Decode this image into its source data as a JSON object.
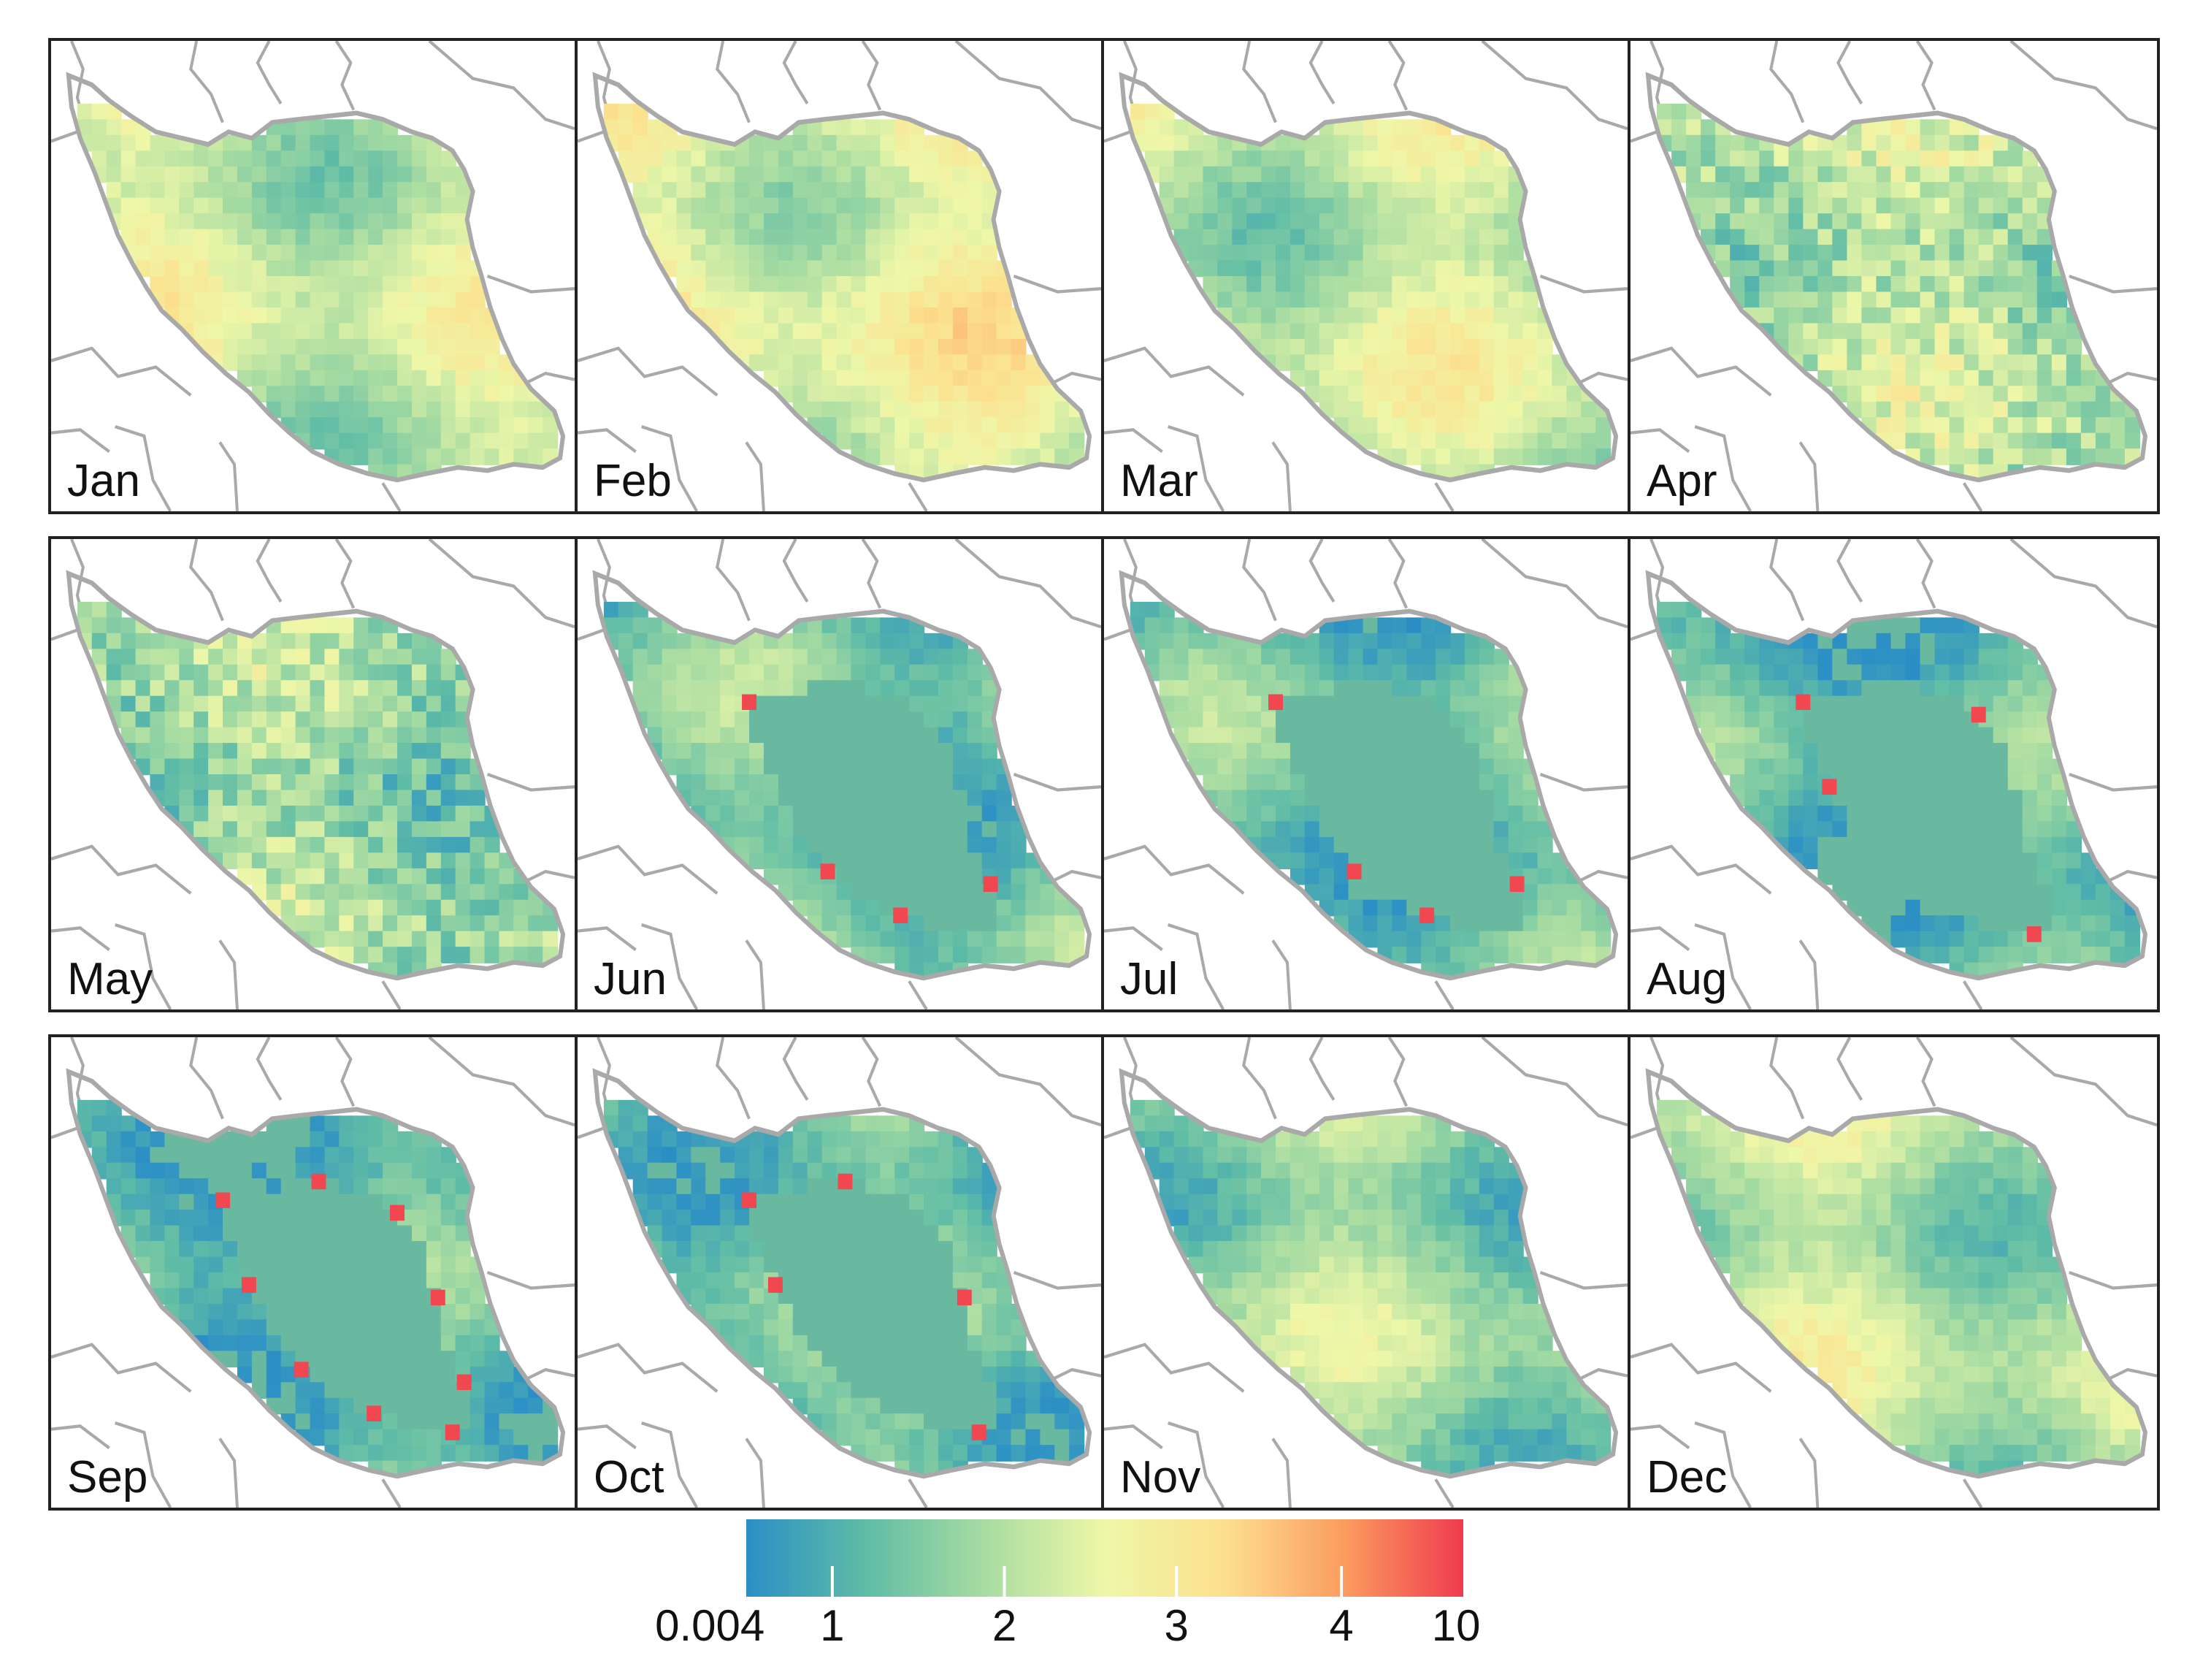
{
  "panels": [
    {
      "month": "Jan",
      "variant": "smooth",
      "base": 0.42
    },
    {
      "month": "Feb",
      "variant": "smooth",
      "base": 0.48
    },
    {
      "month": "Mar",
      "variant": "smooth",
      "base": 0.4
    },
    {
      "month": "Apr",
      "variant": "noisy",
      "base": 0.36
    },
    {
      "month": "May",
      "variant": "noisy",
      "base": 0.3
    },
    {
      "month": "Jun",
      "variant": "masked",
      "base": 0.2
    },
    {
      "month": "Jul",
      "variant": "masked",
      "base": 0.18
    },
    {
      "month": "Aug",
      "variant": "masked",
      "base": 0.15
    },
    {
      "month": "Sep",
      "variant": "masked",
      "base": 0.15
    },
    {
      "month": "Oct",
      "variant": "masked",
      "base": 0.22
    },
    {
      "month": "Nov",
      "variant": "smooth",
      "base": 0.3
    },
    {
      "month": "Dec",
      "variant": "smooth",
      "base": 0.36
    }
  ],
  "colorbar": {
    "ticks": [
      "0.004",
      "1",
      "2",
      "3",
      "4",
      "10"
    ],
    "colors": [
      "#2b8fc6",
      "#5fbca6",
      "#a8dca2",
      "#eef7a8",
      "#fce08e",
      "#fb9c5f",
      "#ef3b4f"
    ]
  },
  "map_colors": {
    "country_fill": "#69b8a0",
    "border": "#a9a9a9",
    "neighbor_lines": "#a9a9a9"
  }
}
